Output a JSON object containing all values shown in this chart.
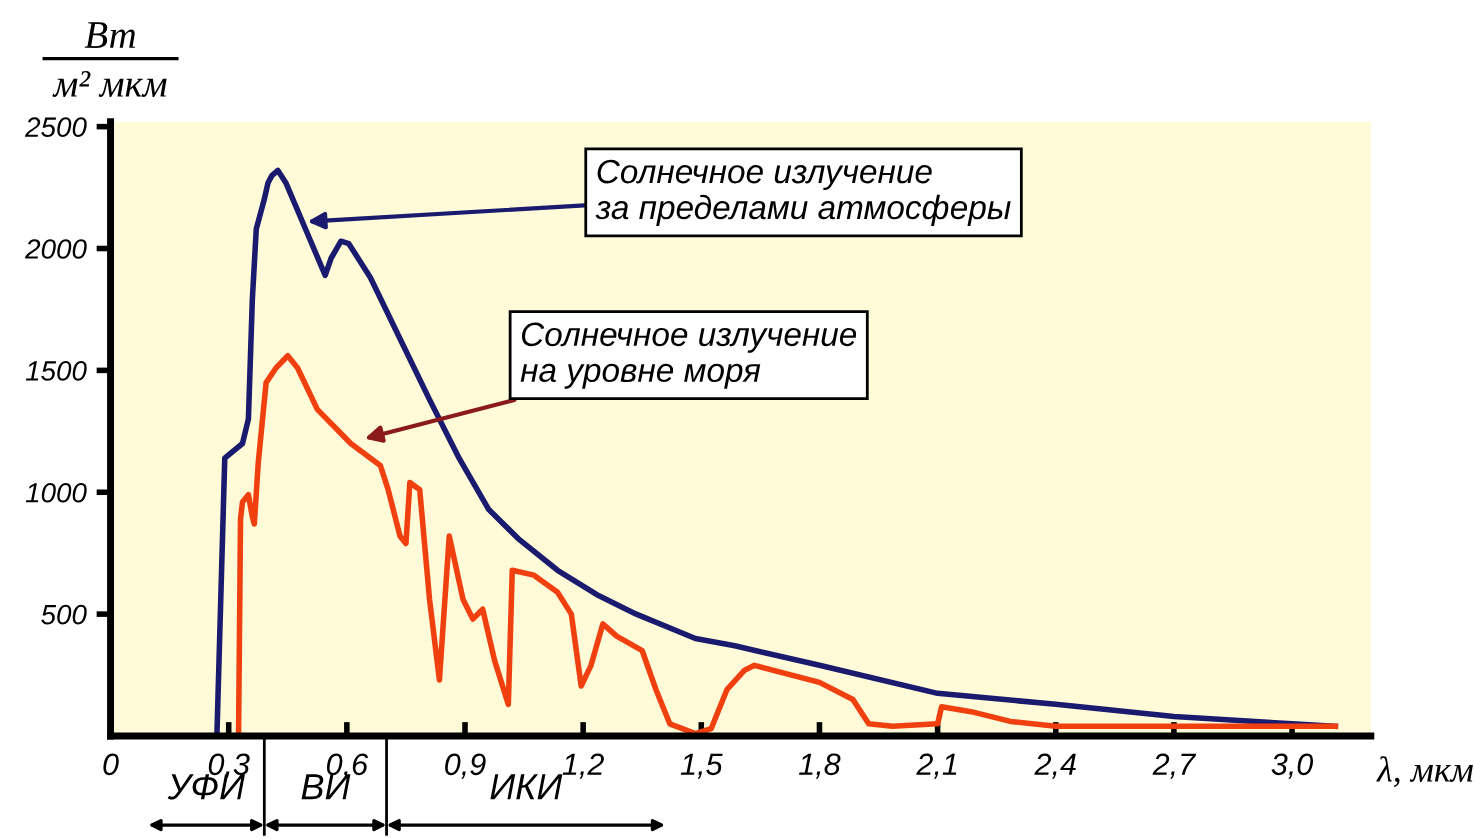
{
  "chart_data": {
    "type": "line",
    "xlabel": "λ, мкм",
    "ylabel": "Вт\nм² мкм",
    "xlim": [
      0,
      3.2
    ],
    "ylim": [
      0,
      2520
    ],
    "xticks": [
      {
        "value": 0,
        "label": "0"
      },
      {
        "value": 0.3,
        "label": "0,3"
      },
      {
        "value": 0.6,
        "label": "0,6"
      },
      {
        "value": 0.9,
        "label": "0,9"
      },
      {
        "value": 1.2,
        "label": "1,2"
      },
      {
        "value": 1.5,
        "label": "1,5"
      },
      {
        "value": 1.8,
        "label": "1,8"
      },
      {
        "value": 2.1,
        "label": "2,1"
      },
      {
        "value": 2.4,
        "label": "2,4"
      },
      {
        "value": 2.7,
        "label": "2,7"
      },
      {
        "value": 3.0,
        "label": "3,0"
      }
    ],
    "yticks": [
      500,
      1000,
      1500,
      2000,
      2500
    ],
    "grid": false,
    "legend": false,
    "marker": "none",
    "line_style": "solid",
    "series": [
      {
        "color": "#1a1a6e",
        "x": [
          0.27,
          0.29,
          0.335,
          0.35,
          0.36,
          0.37,
          0.39,
          0.4,
          0.41,
          0.425,
          0.445,
          0.495,
          0.545,
          0.56,
          0.585,
          0.605,
          0.66,
          0.735,
          0.81,
          0.885,
          0.96,
          1.035,
          1.135,
          1.235,
          1.335,
          1.485,
          1.585,
          1.8,
          2.1,
          2.4,
          2.7,
          3.0,
          3.11
        ],
        "values": [
          0,
          1140,
          1200,
          1300,
          1790,
          2080,
          2200,
          2270,
          2300,
          2320,
          2270,
          2080,
          1890,
          1960,
          2030,
          2020,
          1880,
          1630,
          1380,
          1140,
          930,
          810,
          680,
          580,
          500,
          400,
          370,
          290,
          175,
          130,
          80,
          50,
          40
        ]
      },
      {
        "color": "#f04010",
        "x": [
          0.325,
          0.33,
          0.335,
          0.35,
          0.36,
          0.365,
          0.375,
          0.395,
          0.42,
          0.45,
          0.475,
          0.525,
          0.61,
          0.685,
          0.705,
          0.735,
          0.75,
          0.76,
          0.785,
          0.81,
          0.835,
          0.86,
          0.895,
          0.92,
          0.945,
          0.975,
          1.01,
          1.02,
          1.075,
          1.135,
          1.17,
          1.195,
          1.22,
          1.25,
          1.285,
          1.35,
          1.385,
          1.42,
          1.485,
          1.525,
          1.565,
          1.61,
          1.635,
          1.8,
          1.885,
          1.925,
          1.985,
          2.1,
          2.11,
          2.185,
          2.285,
          2.4,
          2.7,
          3.0,
          3.11
        ],
        "values": [
          0,
          890,
          960,
          990,
          900,
          870,
          1120,
          1450,
          1510,
          1560,
          1510,
          1340,
          1200,
          1110,
          1010,
          820,
          790,
          1040,
          1010,
          560,
          230,
          820,
          560,
          480,
          520,
          310,
          130,
          680,
          660,
          590,
          500,
          205,
          290,
          460,
          410,
          350,
          190,
          50,
          10,
          30,
          190,
          270,
          290,
          220,
          150,
          50,
          40,
          50,
          120,
          100,
          60,
          40,
          40,
          40,
          40
        ]
      }
    ],
    "annotations": [
      {
        "text": "Солнечное излучение\nза пределами атмосферы",
        "x": 0.5,
        "y": 2110
      },
      {
        "text": "Солнечное излучение\nна уровне моря",
        "x": 0.645,
        "y": 1220
      },
      "УФИ",
      "ВИ",
      "ИКИ"
    ]
  }
}
